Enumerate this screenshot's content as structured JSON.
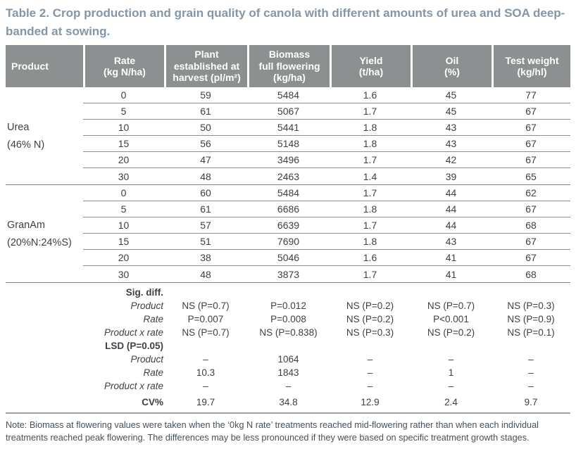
{
  "title": "Table 2. Crop production and grain quality of canola with different amounts of urea and SOA deep-banded at sowing.",
  "colors": {
    "title_text": "#8296a9",
    "header_bg": "#8d9091",
    "header_text": "#ffffff",
    "body_text": "#3b4147",
    "note_text": "#46515a",
    "row_line": "#898f94",
    "bottom_rule": "#9aa3a9"
  },
  "columns": [
    "Product",
    "Rate\n(kg N/ha)",
    "Plant\nestablished at\nharvest (pl/m²)",
    "Biomass\nfull flowering\n(kg/ha)",
    "Yield\n(t/ha)",
    "Oil\n(%)",
    "Test weight\n(kg/hl)"
  ],
  "groups": [
    {
      "product": [
        "Urea",
        "(46% N)"
      ],
      "rows": [
        [
          "0",
          "59",
          "5484",
          "1.6",
          "45",
          "77"
        ],
        [
          "5",
          "61",
          "5067",
          "1.7",
          "45",
          "67"
        ],
        [
          "10",
          "50",
          "5441",
          "1.8",
          "43",
          "67"
        ],
        [
          "15",
          "56",
          "5148",
          "1.8",
          "43",
          "67"
        ],
        [
          "20",
          "47",
          "3496",
          "1.7",
          "42",
          "67"
        ],
        [
          "30",
          "48",
          "2463",
          "1.4",
          "39",
          "65"
        ]
      ]
    },
    {
      "product": [
        "GranAm",
        "(20%N:24%S)"
      ],
      "rows": [
        [
          "0",
          "60",
          "5484",
          "1.7",
          "44",
          "62"
        ],
        [
          "5",
          "61",
          "6686",
          "1.8",
          "44",
          "67"
        ],
        [
          "10",
          "57",
          "6639",
          "1.7",
          "44",
          "68"
        ],
        [
          "15",
          "51",
          "7690",
          "1.8",
          "43",
          "67"
        ],
        [
          "20",
          "38",
          "5046",
          "1.6",
          "41",
          "67"
        ],
        [
          "30",
          "48",
          "3873",
          "1.7",
          "41",
          "68"
        ]
      ]
    }
  ],
  "stats": [
    {
      "label": "Sig. diff.",
      "style": "bold",
      "values": [
        "",
        "",
        "",
        "",
        ""
      ]
    },
    {
      "label": "Product",
      "style": "italic",
      "values": [
        "NS (P=0.7)",
        "P=0.012",
        "NS (P=0.2)",
        "NS (P=0.7)",
        "NS (P=0.3)"
      ]
    },
    {
      "label": "Rate",
      "style": "italic",
      "values": [
        "P=0.007",
        "P=0.008",
        "NS (P=0.2)",
        "P<0.001",
        "NS (P=0.9)"
      ]
    },
    {
      "label": "Product x rate",
      "style": "italic",
      "values": [
        "NS (P=0.7)",
        "NS (P=0.838)",
        "NS (P=0.3)",
        "NS (P=0.2)",
        "NS (P=0.1)"
      ]
    },
    {
      "label": "LSD (P=0.05)",
      "style": "bold",
      "values": [
        "",
        "",
        "",
        "",
        ""
      ]
    },
    {
      "label": "Product",
      "style": "italic",
      "values": [
        "–",
        "1064",
        "–",
        "–",
        "–"
      ]
    },
    {
      "label": "Rate",
      "style": "italic",
      "values": [
        "10.3",
        "1843",
        "–",
        "1",
        "–"
      ]
    },
    {
      "label": "Product x rate",
      "style": "italic",
      "values": [
        "–",
        "–",
        "–",
        "–",
        "–"
      ]
    }
  ],
  "cv": {
    "label": "CV%",
    "values": [
      "19.7",
      "34.8",
      "12.9",
      "2.4",
      "9.7"
    ]
  },
  "note": "Note: Biomass at flowering values were taken when the ‘0kg N rate’ treatments reached mid-flowering rather than when each individual treatments reached peak flowering. The differences may be less pronounced if they were based on specific treatment growth stages."
}
